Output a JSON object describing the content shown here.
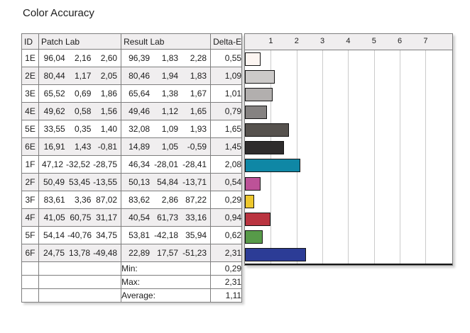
{
  "title": "Color Accuracy",
  "table": {
    "headers": {
      "id": "ID",
      "patch": "Patch Lab",
      "result": "Result Lab",
      "delta": "Delta-E"
    },
    "rows": [
      {
        "id": "1E",
        "patch": [
          "96,04",
          "2,16",
          "2,60"
        ],
        "result": [
          "96,39",
          "1,83",
          "2,28"
        ],
        "delta": "0,55",
        "delta_value": 0.55,
        "color": "#fcf5f1"
      },
      {
        "id": "2E",
        "patch": [
          "80,44",
          "1,17",
          "2,05"
        ],
        "result": [
          "80,46",
          "1,94",
          "1,83"
        ],
        "delta": "1,09",
        "delta_value": 1.09,
        "color": "#cccac9"
      },
      {
        "id": "3E",
        "patch": [
          "65,52",
          "0,69",
          "1,86"
        ],
        "result": [
          "65,64",
          "1,38",
          "1,67"
        ],
        "delta": "1,01",
        "delta_value": 1.01,
        "color": "#b2afae"
      },
      {
        "id": "4E",
        "patch": [
          "49,62",
          "0,58",
          "1,56"
        ],
        "result": [
          "49,46",
          "1,12",
          "1,65"
        ],
        "delta": "0,79",
        "delta_value": 0.79,
        "color": "#858281"
      },
      {
        "id": "5E",
        "patch": [
          "33,55",
          "0,35",
          "1,40"
        ],
        "result": [
          "32,08",
          "1,09",
          "1,93"
        ],
        "delta": "1,65",
        "delta_value": 1.65,
        "color": "#56524e"
      },
      {
        "id": "6E",
        "patch": [
          "16,91",
          "1,43",
          "-0,81"
        ],
        "result": [
          "14,89",
          "1,05",
          "-0,59"
        ],
        "delta": "1,45",
        "delta_value": 1.45,
        "color": "#2e2c2c"
      },
      {
        "id": "1F",
        "patch": [
          "47,12",
          "-32,52",
          "-28,75"
        ],
        "result": [
          "46,34",
          "-28,01",
          "-28,41"
        ],
        "delta": "2,08",
        "delta_value": 2.08,
        "color": "#0f87a5"
      },
      {
        "id": "2F",
        "patch": [
          "50,49",
          "53,45",
          "-13,55"
        ],
        "result": [
          "50,13",
          "54,84",
          "-13,71"
        ],
        "delta": "0,54",
        "delta_value": 0.54,
        "color": "#bd5298"
      },
      {
        "id": "3F",
        "patch": [
          "83,61",
          "3,36",
          "87,02"
        ],
        "result": [
          "83,62",
          "2,86",
          "87,22"
        ],
        "delta": "0,29",
        "delta_value": 0.29,
        "color": "#edc72d"
      },
      {
        "id": "4F",
        "patch": [
          "41,05",
          "60,75",
          "31,17"
        ],
        "result": [
          "40,54",
          "61,73",
          "33,16"
        ],
        "delta": "0,94",
        "delta_value": 0.94,
        "color": "#ba3440"
      },
      {
        "id": "5F",
        "patch": [
          "54,14",
          "-40,76",
          "34,75"
        ],
        "result": [
          "53,81",
          "-42,18",
          "35,94"
        ],
        "delta": "0,62",
        "delta_value": 0.62,
        "color": "#579a49"
      },
      {
        "id": "6F",
        "patch": [
          "24,75",
          "13,78",
          "-49,48"
        ],
        "result": [
          "22,89",
          "17,57",
          "-51,23"
        ],
        "delta": "2,31",
        "delta_value": 2.31,
        "color": "#2c3c96"
      }
    ],
    "summary": [
      {
        "label": "Min:",
        "value": "0,29"
      },
      {
        "label": "Max:",
        "value": "2,31"
      },
      {
        "label": "Average:",
        "value": "1,11"
      }
    ]
  },
  "chart_data": {
    "type": "bar",
    "orientation": "horizontal",
    "title": "Color Accuracy",
    "xlabel": "Delta-E",
    "categories": [
      "1E",
      "2E",
      "3E",
      "4E",
      "5E",
      "6E",
      "1F",
      "2F",
      "3F",
      "4F",
      "5F",
      "6F"
    ],
    "values": [
      0.55,
      1.09,
      1.01,
      0.79,
      1.65,
      1.45,
      2.08,
      0.54,
      0.29,
      0.94,
      0.62,
      2.31
    ],
    "bar_colors": [
      "#fcf5f1",
      "#cccac9",
      "#b2afae",
      "#858281",
      "#56524e",
      "#2e2c2c",
      "#0f87a5",
      "#bd5298",
      "#edc72d",
      "#ba3440",
      "#579a49",
      "#2c3c96"
    ],
    "x_ticks": [
      "1",
      "2",
      "3",
      "4",
      "5",
      "6",
      "7"
    ],
    "xlim": [
      0,
      8.05
    ],
    "grid": true,
    "legend": false,
    "min": 0.29,
    "max": 2.31,
    "average": 1.11
  }
}
